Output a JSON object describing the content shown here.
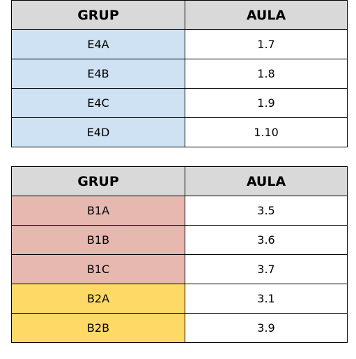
{
  "tables": [
    {
      "headers": [
        "GRUP",
        "AULA"
      ],
      "rows": [
        {
          "grup": "E4A",
          "aula": "1.7",
          "color": "#cfe2f3"
        },
        {
          "grup": "E4B",
          "aula": "1.8",
          "color": "#cfe2f3"
        },
        {
          "grup": "E4C",
          "aula": "1.9",
          "color": "#cfe2f3"
        },
        {
          "grup": "E4D",
          "aula": "1.10",
          "color": "#cfe2f3"
        }
      ]
    },
    {
      "headers": [
        "GRUP",
        "AULA"
      ],
      "rows": [
        {
          "grup": "B1A",
          "aula": "3.5",
          "color": "#e6b8af"
        },
        {
          "grup": "B1B",
          "aula": "3.6",
          "color": "#e6b8af"
        },
        {
          "grup": "B1C",
          "aula": "3.7",
          "color": "#e6b8af"
        },
        {
          "grup": "B2A",
          "aula": "3.1",
          "color": "#ffd966"
        },
        {
          "grup": "B2B",
          "aula": "3.9",
          "color": "#ffd966"
        }
      ]
    }
  ]
}
